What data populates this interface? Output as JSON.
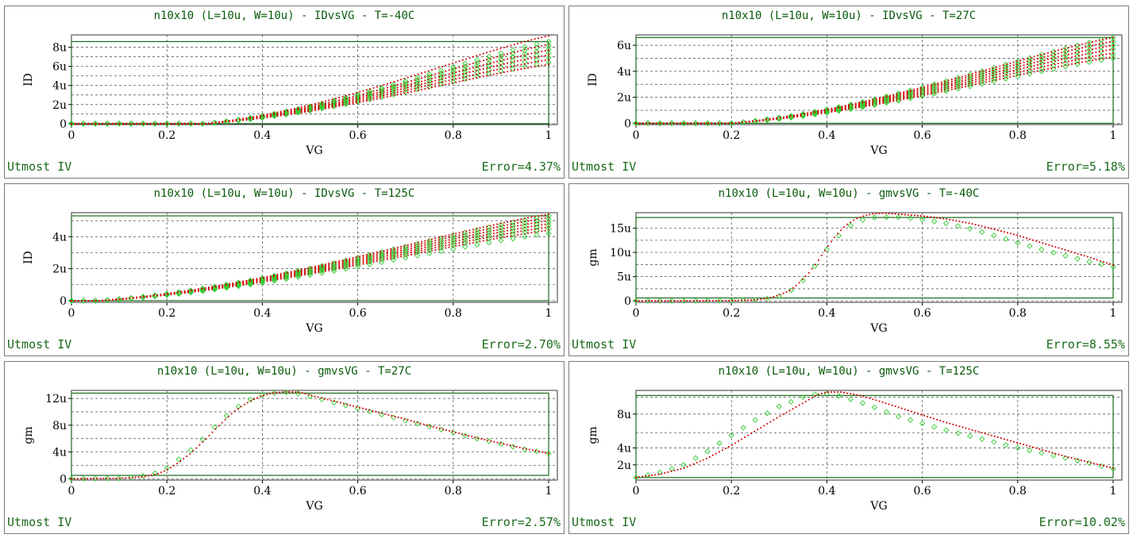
{
  "colors": {
    "model": "#d40000",
    "measured": "#33cc33",
    "frame": "#1a6a1a",
    "grid": "#444444",
    "title": "#0a5a0a"
  },
  "footer_left": "Utmost IV",
  "chart_data": [
    {
      "type": "scatter",
      "title": "n10x10 (L=10u, W=10u) - IDvsVG - T=-40C",
      "xlabel": "VG",
      "ylabel": "ID",
      "error": "Error=4.37%",
      "xlim": [
        0,
        1
      ],
      "ylim": [
        -0.1,
        9.3
      ],
      "xticks": [
        "0",
        "0.2",
        "0.4",
        "0.6",
        "0.8",
        "1"
      ],
      "yticks": [
        {
          "v": 0,
          "l": "0"
        },
        {
          "v": 2,
          "l": "2u"
        },
        {
          "v": 4,
          "l": "4u"
        },
        {
          "v": 6,
          "l": "6u"
        },
        {
          "v": 8,
          "l": "8u"
        }
      ],
      "ygrid": [
        0,
        1,
        2,
        3,
        4,
        5,
        6,
        7,
        8
      ],
      "box": [
        0,
        8.6
      ],
      "family": {
        "vt": 0.36,
        "curves": [
          {
            "meas": 6.4,
            "model": 6.2
          },
          {
            "meas": 6.9,
            "model": 6.7
          },
          {
            "meas": 7.4,
            "model": 7.2
          },
          {
            "meas": 7.8,
            "model": 7.7
          },
          {
            "meas": 8.2,
            "model": 8.3
          },
          {
            "meas": 8.6,
            "model": 9.2
          }
        ]
      }
    },
    {
      "type": "scatter",
      "title": "n10x10 (L=10u, W=10u) - IDvsVG - T=27C",
      "xlabel": "VG",
      "ylabel": "ID",
      "error": "Error=5.18%",
      "xlim": [
        0,
        1
      ],
      "ylim": [
        -0.1,
        6.8
      ],
      "xticks": [
        "0",
        "0.2",
        "0.4",
        "0.6",
        "0.8",
        "1"
      ],
      "yticks": [
        {
          "v": 0,
          "l": "0"
        },
        {
          "v": 2,
          "l": "2u"
        },
        {
          "v": 4,
          "l": "4u"
        },
        {
          "v": 6,
          "l": "6u"
        }
      ],
      "ygrid": [
        0,
        1,
        2,
        3,
        4,
        5,
        6
      ],
      "box": [
        0,
        6.6
      ],
      "family": {
        "vt": 0.28,
        "curves": [
          {
            "meas": 5.0,
            "model": 5.1
          },
          {
            "meas": 5.3,
            "model": 5.4
          },
          {
            "meas": 5.7,
            "model": 5.7
          },
          {
            "meas": 6.0,
            "model": 6.0
          },
          {
            "meas": 6.3,
            "model": 6.3
          },
          {
            "meas": 6.6,
            "model": 6.6
          }
        ]
      }
    },
    {
      "type": "scatter",
      "title": "n10x10 (L=10u, W=10u) - IDvsVG - T=125C",
      "xlabel": "VG",
      "ylabel": "ID",
      "error": "Error=2.70%",
      "xlim": [
        0,
        1
      ],
      "ylim": [
        -0.1,
        5.5
      ],
      "xticks": [
        "0",
        "0.2",
        "0.4",
        "0.6",
        "0.8",
        "1"
      ],
      "yticks": [
        {
          "v": 0,
          "l": "0"
        },
        {
          "v": 2,
          "l": "2u"
        },
        {
          "v": 4,
          "l": "4u"
        }
      ],
      "ygrid": [
        0,
        1,
        2,
        3,
        4,
        5
      ],
      "box": [
        0,
        5.3
      ],
      "family": {
        "vt": 0.14,
        "curves": [
          {
            "meas": 4.2,
            "model": 4.4
          },
          {
            "meas": 4.5,
            "model": 4.6
          },
          {
            "meas": 4.7,
            "model": 4.8
          },
          {
            "meas": 4.9,
            "model": 5.0
          },
          {
            "meas": 5.1,
            "model": 5.2
          },
          {
            "meas": 5.3,
            "model": 5.4
          }
        ]
      }
    },
    {
      "type": "scatter",
      "title": "n10x10 (L=10u, W=10u) - gmvsVG - T=-40C",
      "xlabel": "VG",
      "ylabel": "gm",
      "error": "Error=8.55%",
      "xlim": [
        0,
        1
      ],
      "ylim": [
        -0.3,
        18.2
      ],
      "xticks": [
        "0",
        "0.2",
        "0.4",
        "0.6",
        "0.8",
        "1"
      ],
      "yticks": [
        {
          "v": 0,
          "l": "0"
        },
        {
          "v": 5,
          "l": "5u"
        },
        {
          "v": 10,
          "l": "10u"
        },
        {
          "v": 15,
          "l": "15u"
        }
      ],
      "ygrid": [
        0,
        2.5,
        5,
        7.5,
        10,
        12.5,
        15
      ],
      "box": [
        0.6,
        17.2
      ],
      "gm": {
        "model": [
          [
            0,
            0
          ],
          [
            0.1,
            0
          ],
          [
            0.2,
            0.05
          ],
          [
            0.25,
            0.2
          ],
          [
            0.28,
            0.6
          ],
          [
            0.3,
            1.2
          ],
          [
            0.32,
            2.0
          ],
          [
            0.34,
            3.5
          ],
          [
            0.36,
            5.5
          ],
          [
            0.38,
            8.0
          ],
          [
            0.4,
            11.0
          ],
          [
            0.42,
            13.6
          ],
          [
            0.44,
            15.6
          ],
          [
            0.46,
            16.9
          ],
          [
            0.48,
            17.6
          ],
          [
            0.5,
            18.0
          ],
          [
            0.52,
            18.1
          ],
          [
            0.55,
            17.9
          ],
          [
            0.6,
            17.5
          ],
          [
            0.65,
            16.9
          ],
          [
            0.7,
            16.0
          ],
          [
            0.75,
            14.8
          ],
          [
            0.8,
            13.5
          ],
          [
            0.85,
            12.0
          ],
          [
            0.9,
            10.5
          ],
          [
            0.95,
            9.0
          ],
          [
            1.0,
            7.4
          ]
        ],
        "meas": [
          [
            0,
            0
          ],
          [
            0.1,
            0
          ],
          [
            0.2,
            0.05
          ],
          [
            0.25,
            0.2
          ],
          [
            0.28,
            0.5
          ],
          [
            0.3,
            1.0
          ],
          [
            0.32,
            1.8
          ],
          [
            0.34,
            3.2
          ],
          [
            0.36,
            5.2
          ],
          [
            0.38,
            7.8
          ],
          [
            0.4,
            10.6
          ],
          [
            0.42,
            13.0
          ],
          [
            0.44,
            14.9
          ],
          [
            0.46,
            16.2
          ],
          [
            0.48,
            16.9
          ],
          [
            0.5,
            17.2
          ],
          [
            0.53,
            17.3
          ],
          [
            0.56,
            17.2
          ],
          [
            0.6,
            16.8
          ],
          [
            0.65,
            16.0
          ],
          [
            0.7,
            14.9
          ],
          [
            0.75,
            13.5
          ],
          [
            0.8,
            12.0
          ],
          [
            0.85,
            10.6
          ],
          [
            0.9,
            9.3
          ],
          [
            0.95,
            8.1
          ],
          [
            1.0,
            7.0
          ]
        ]
      }
    },
    {
      "type": "scatter",
      "title": "n10x10 (L=10u, W=10u) - gmvsVG - T=27C",
      "xlabel": "VG",
      "ylabel": "gm",
      "error": "Error=2.57%",
      "xlim": [
        0,
        1
      ],
      "ylim": [
        -0.2,
        13.2
      ],
      "xticks": [
        "0",
        "0.2",
        "0.4",
        "0.6",
        "0.8",
        "1"
      ],
      "yticks": [
        {
          "v": 0,
          "l": "0"
        },
        {
          "v": 4,
          "l": "4u"
        },
        {
          "v": 8,
          "l": "8u"
        },
        {
          "v": 12,
          "l": "12u"
        }
      ],
      "ygrid": [
        0,
        2,
        4,
        6,
        8,
        10,
        12
      ],
      "box": [
        0.5,
        12.8
      ],
      "gm": {
        "model": [
          [
            0,
            0
          ],
          [
            0.1,
            0.05
          ],
          [
            0.15,
            0.3
          ],
          [
            0.18,
            0.7
          ],
          [
            0.2,
            1.3
          ],
          [
            0.22,
            2.2
          ],
          [
            0.25,
            3.8
          ],
          [
            0.28,
            5.8
          ],
          [
            0.3,
            7.3
          ],
          [
            0.32,
            8.7
          ],
          [
            0.34,
            10.0
          ],
          [
            0.36,
            11.0
          ],
          [
            0.38,
            11.8
          ],
          [
            0.4,
            12.4
          ],
          [
            0.42,
            12.8
          ],
          [
            0.45,
            13.0
          ],
          [
            0.48,
            12.9
          ],
          [
            0.5,
            12.5
          ],
          [
            0.55,
            11.6
          ],
          [
            0.6,
            10.7
          ],
          [
            0.65,
            9.8
          ],
          [
            0.7,
            8.9
          ],
          [
            0.75,
            7.9
          ],
          [
            0.8,
            7.0
          ],
          [
            0.85,
            6.1
          ],
          [
            0.9,
            5.3
          ],
          [
            0.95,
            4.5
          ],
          [
            1.0,
            3.8
          ]
        ],
        "meas": [
          [
            0,
            0
          ],
          [
            0.1,
            0.05
          ],
          [
            0.15,
            0.4
          ],
          [
            0.18,
            0.9
          ],
          [
            0.2,
            1.6
          ],
          [
            0.22,
            2.6
          ],
          [
            0.25,
            4.3
          ],
          [
            0.28,
            6.2
          ],
          [
            0.3,
            7.7
          ],
          [
            0.32,
            9.1
          ],
          [
            0.34,
            10.3
          ],
          [
            0.36,
            11.3
          ],
          [
            0.38,
            12.0
          ],
          [
            0.4,
            12.5
          ],
          [
            0.42,
            12.8
          ],
          [
            0.45,
            12.9
          ],
          [
            0.48,
            12.7
          ],
          [
            0.5,
            12.3
          ],
          [
            0.55,
            11.4
          ],
          [
            0.6,
            10.5
          ],
          [
            0.65,
            9.6
          ],
          [
            0.7,
            8.7
          ],
          [
            0.75,
            7.8
          ],
          [
            0.8,
            6.9
          ],
          [
            0.85,
            6.0
          ],
          [
            0.9,
            5.2
          ],
          [
            0.95,
            4.4
          ],
          [
            1.0,
            3.8
          ]
        ]
      }
    },
    {
      "type": "scatter",
      "title": "n10x10 (L=10u, W=10u) - gmvsVG - T=125C",
      "xlabel": "VG",
      "ylabel": "gm",
      "error": "Error=10.02%",
      "xlim": [
        0,
        1
      ],
      "ylim": [
        0.2,
        10.8
      ],
      "xticks": [
        "0",
        "0.2",
        "0.4",
        "0.6",
        "0.8",
        "1"
      ],
      "yticks": [
        {
          "v": 2,
          "l": "2u"
        },
        {
          "v": 4,
          "l": "4u"
        },
        {
          "v": 8,
          "l": "8u"
        }
      ],
      "ygrid": [
        2,
        4,
        5.8,
        8,
        10
      ],
      "box": [
        0.5,
        10.2
      ],
      "gm": {
        "model": [
          [
            0,
            0.5
          ],
          [
            0.05,
            0.9
          ],
          [
            0.1,
            1.6
          ],
          [
            0.15,
            2.8
          ],
          [
            0.2,
            4.3
          ],
          [
            0.25,
            6.0
          ],
          [
            0.3,
            7.7
          ],
          [
            0.35,
            9.3
          ],
          [
            0.38,
            10.3
          ],
          [
            0.4,
            10.6
          ],
          [
            0.43,
            10.6
          ],
          [
            0.47,
            10.2
          ],
          [
            0.5,
            9.7
          ],
          [
            0.55,
            8.8
          ],
          [
            0.6,
            7.9
          ],
          [
            0.65,
            7.0
          ],
          [
            0.7,
            6.2
          ],
          [
            0.75,
            5.4
          ],
          [
            0.8,
            4.6
          ],
          [
            0.85,
            3.8
          ],
          [
            0.9,
            3.0
          ],
          [
            0.95,
            2.3
          ],
          [
            1.0,
            1.6
          ]
        ],
        "meas": [
          [
            0,
            0.5
          ],
          [
            0.05,
            1.1
          ],
          [
            0.1,
            2.0
          ],
          [
            0.15,
            3.6
          ],
          [
            0.2,
            5.5
          ],
          [
            0.25,
            7.3
          ],
          [
            0.3,
            8.9
          ],
          [
            0.35,
            10.0
          ],
          [
            0.38,
            10.4
          ],
          [
            0.4,
            10.4
          ],
          [
            0.43,
            10.1
          ],
          [
            0.47,
            9.4
          ],
          [
            0.5,
            8.8
          ],
          [
            0.55,
            7.7
          ],
          [
            0.6,
            6.9
          ],
          [
            0.65,
            6.1
          ],
          [
            0.7,
            5.4
          ],
          [
            0.75,
            4.7
          ],
          [
            0.8,
            4.0
          ],
          [
            0.85,
            3.4
          ],
          [
            0.9,
            2.8
          ],
          [
            0.95,
            2.2
          ],
          [
            1.0,
            1.5
          ]
        ]
      }
    }
  ]
}
